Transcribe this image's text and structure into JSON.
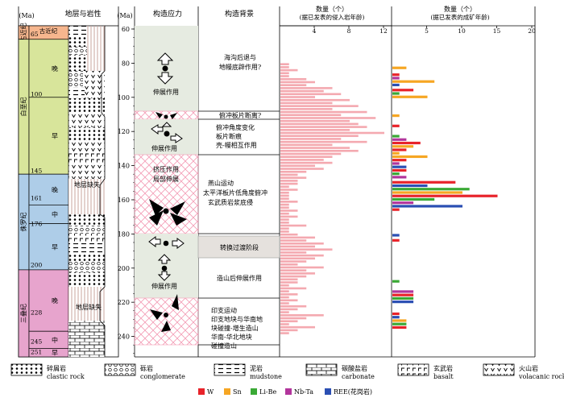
{
  "headers": {
    "ma_left": "(Ma)",
    "strat": "地层与岩性",
    "ma_mid": "(Ma)",
    "stress": "构造应力",
    "setting": "构造背景",
    "intrusion_title": "数量（个）",
    "intrusion_sub": "(据已发表的侵入岩年龄)",
    "deposit_title": "数量（个）",
    "deposit_sub": "(据已发表的成矿年龄)"
  },
  "periods": [
    {
      "name": "古近纪",
      "color": "#f6b68e",
      "top": 60,
      "bottom": 66
    },
    {
      "name": "白垩纪",
      "color": "#d8e59b",
      "top": 66,
      "bottom": 145
    },
    {
      "name": "侏罗纪",
      "color": "#aecde8",
      "top": 145,
      "bottom": 201
    },
    {
      "name": "三叠纪",
      "color": "#e7a4cd",
      "top": 201,
      "bottom": 252
    }
  ],
  "epochs": [
    {
      "name": "晚",
      "top": 66,
      "bottom": 100
    },
    {
      "name": "早",
      "top": 100,
      "bottom": 145
    },
    {
      "name": "晚",
      "top": 145,
      "bottom": 163
    },
    {
      "name": "中",
      "top": 163,
      "bottom": 174
    },
    {
      "name": "早",
      "top": 174,
      "bottom": 201
    },
    {
      "name": "晚",
      "top": 201,
      "bottom": 237
    },
    {
      "name": "中",
      "top": 237,
      "bottom": 247
    },
    {
      "name": "早",
      "top": 247,
      "bottom": 252
    }
  ],
  "boundary_ages": [
    "65",
    "100",
    "145",
    "161",
    "176",
    "200",
    "228",
    "245",
    "251"
  ],
  "age_ticks": [
    60,
    80,
    100,
    120,
    140,
    160,
    180,
    200,
    220,
    240
  ],
  "gap_label": "地层缺失",
  "stress_labels": {
    "ext1": "伸展作用",
    "ext2": "伸展作用",
    "comp1": "挤压作用",
    "comp2": "局部伸展",
    "ext3": "伸展作用"
  },
  "settings": {
    "s1": [
      "海沟后退与",
      "地幔底辟作用?"
    ],
    "s2": "俯冲板片断离?",
    "s3": [
      "俯冲角度变化",
      "板片断痕",
      "壳-幔相互作用"
    ],
    "s4": [
      "燕山运动",
      "太平洋板片低角度俯冲",
      "玄武质岩浆底侵"
    ],
    "s5": "转换过渡阶段",
    "s6": "造山后伸展作用",
    "s7": [
      "印支运动",
      "印支地块与华南地",
      "块碰撞-增生造山",
      "华南-华北地块",
      "碰撞造山"
    ]
  },
  "intrusion_axis": {
    "ticks": [
      "4",
      "8",
      "12"
    ],
    "max": 12
  },
  "intrusion_counts": [
    1,
    1,
    2,
    1,
    1,
    3,
    4,
    3,
    6,
    5,
    7,
    4,
    8,
    6,
    9,
    6,
    10,
    7,
    11,
    8,
    9,
    10,
    8,
    12,
    9,
    7,
    10,
    6,
    8,
    9,
    7,
    6,
    5,
    6,
    4,
    5,
    3,
    2,
    3,
    2,
    2,
    1,
    2,
    1,
    1,
    1,
    2,
    1,
    1,
    2,
    1,
    2,
    1,
    1,
    3,
    1,
    1,
    2,
    4,
    3,
    5,
    4,
    6,
    3,
    5,
    4,
    3,
    2,
    5,
    3,
    4,
    3,
    2,
    2,
    1,
    3,
    1,
    2,
    1,
    2,
    1,
    3,
    2,
    1,
    5,
    3,
    2,
    1,
    4,
    2,
    1
  ],
  "intrusion_start_age": 80,
  "intrusion_step": 1.75,
  "deposit_axis": {
    "ticks": [
      "5",
      "10",
      "15",
      "20"
    ],
    "max": 20
  },
  "deposit_bars": [
    {
      "age": 82,
      "type": "Sn",
      "count": 2
    },
    {
      "age": 86,
      "type": "W",
      "count": 1
    },
    {
      "age": 88,
      "type": "Nb-Ta",
      "count": 1
    },
    {
      "age": 90,
      "type": "Sn",
      "count": 6
    },
    {
      "age": 92,
      "type": "REE",
      "count": 1
    },
    {
      "age": 95,
      "type": "W",
      "count": 3
    },
    {
      "age": 97,
      "type": "Li-Be",
      "count": 1
    },
    {
      "age": 99,
      "type": "Sn",
      "count": 5
    },
    {
      "age": 110,
      "type": "Sn",
      "count": 1
    },
    {
      "age": 116,
      "type": "W",
      "count": 1
    },
    {
      "age": 122,
      "type": "Li-Be",
      "count": 1
    },
    {
      "age": 124,
      "type": "Nb-Ta",
      "count": 2
    },
    {
      "age": 126,
      "type": "W",
      "count": 4
    },
    {
      "age": 128,
      "type": "Sn",
      "count": 3
    },
    {
      "age": 130,
      "type": "W",
      "count": 2
    },
    {
      "age": 132,
      "type": "Sn",
      "count": 1
    },
    {
      "age": 134,
      "type": "Sn",
      "count": 5
    },
    {
      "age": 136,
      "type": "W",
      "count": 2
    },
    {
      "age": 138,
      "type": "Nb-Ta",
      "count": 1
    },
    {
      "age": 140,
      "type": "REE",
      "count": 2
    },
    {
      "age": 142,
      "type": "W",
      "count": 2
    },
    {
      "age": 144,
      "type": "Li-Be",
      "count": 1
    },
    {
      "age": 146,
      "type": "Nb-Ta",
      "count": 2
    },
    {
      "age": 149,
      "type": "W",
      "count": 9
    },
    {
      "age": 151,
      "type": "REE",
      "count": 5
    },
    {
      "age": 153,
      "type": "Li-Be",
      "count": 11
    },
    {
      "age": 155,
      "type": "Sn",
      "count": 10
    },
    {
      "age": 157,
      "type": "W",
      "count": 15
    },
    {
      "age": 159,
      "type": "Li-Be",
      "count": 6
    },
    {
      "age": 161,
      "type": "Nb-Ta",
      "count": 3
    },
    {
      "age": 163,
      "type": "REE",
      "count": 10
    },
    {
      "age": 165,
      "type": "W",
      "count": 1
    },
    {
      "age": 180,
      "type": "REE",
      "count": 1
    },
    {
      "age": 183,
      "type": "W",
      "count": 1
    },
    {
      "age": 207,
      "type": "Li-Be",
      "count": 1
    },
    {
      "age": 213,
      "type": "Nb-Ta",
      "count": 3
    },
    {
      "age": 215,
      "type": "W",
      "count": 3
    },
    {
      "age": 217,
      "type": "Li-Be",
      "count": 3
    },
    {
      "age": 219,
      "type": "REE",
      "count": 3
    },
    {
      "age": 226,
      "type": "W",
      "count": 1
    },
    {
      "age": 228,
      "type": "REE",
      "count": 1
    },
    {
      "age": 230,
      "type": "Sn",
      "count": 2
    },
    {
      "age": 232,
      "type": "Li-Be",
      "count": 2
    },
    {
      "age": 234,
      "type": "W",
      "count": 2
    }
  ],
  "types": [
    {
      "key": "W",
      "label": "W",
      "color": "#e8232a"
    },
    {
      "key": "Sn",
      "label": "Sn",
      "color": "#f6a623"
    },
    {
      "key": "Li-Be",
      "label": "Li-Be",
      "color": "#3aa935"
    },
    {
      "key": "Nb-Ta",
      "label": "Nb-Ta",
      "color": "#b2359c"
    },
    {
      "key": "REE",
      "label": "REE(花岗岩)",
      "color": "#2b4fb3"
    }
  ],
  "lithology_legend": [
    {
      "key": "clastic",
      "cn": "碎屑岩",
      "en": "clastic rock"
    },
    {
      "key": "conglomerate",
      "cn": "砾岩",
      "en": "conglomerate"
    },
    {
      "key": "mudstone",
      "cn": "泥岩",
      "en": "mudstone"
    },
    {
      "key": "carbonate",
      "cn": "碳酸盐岩",
      "en": "carbonate"
    },
    {
      "key": "basalt",
      "cn": "玄武岩",
      "en": "basalt"
    },
    {
      "key": "volcanic",
      "cn": "火山岩",
      "en": "volacanic rock"
    }
  ]
}
